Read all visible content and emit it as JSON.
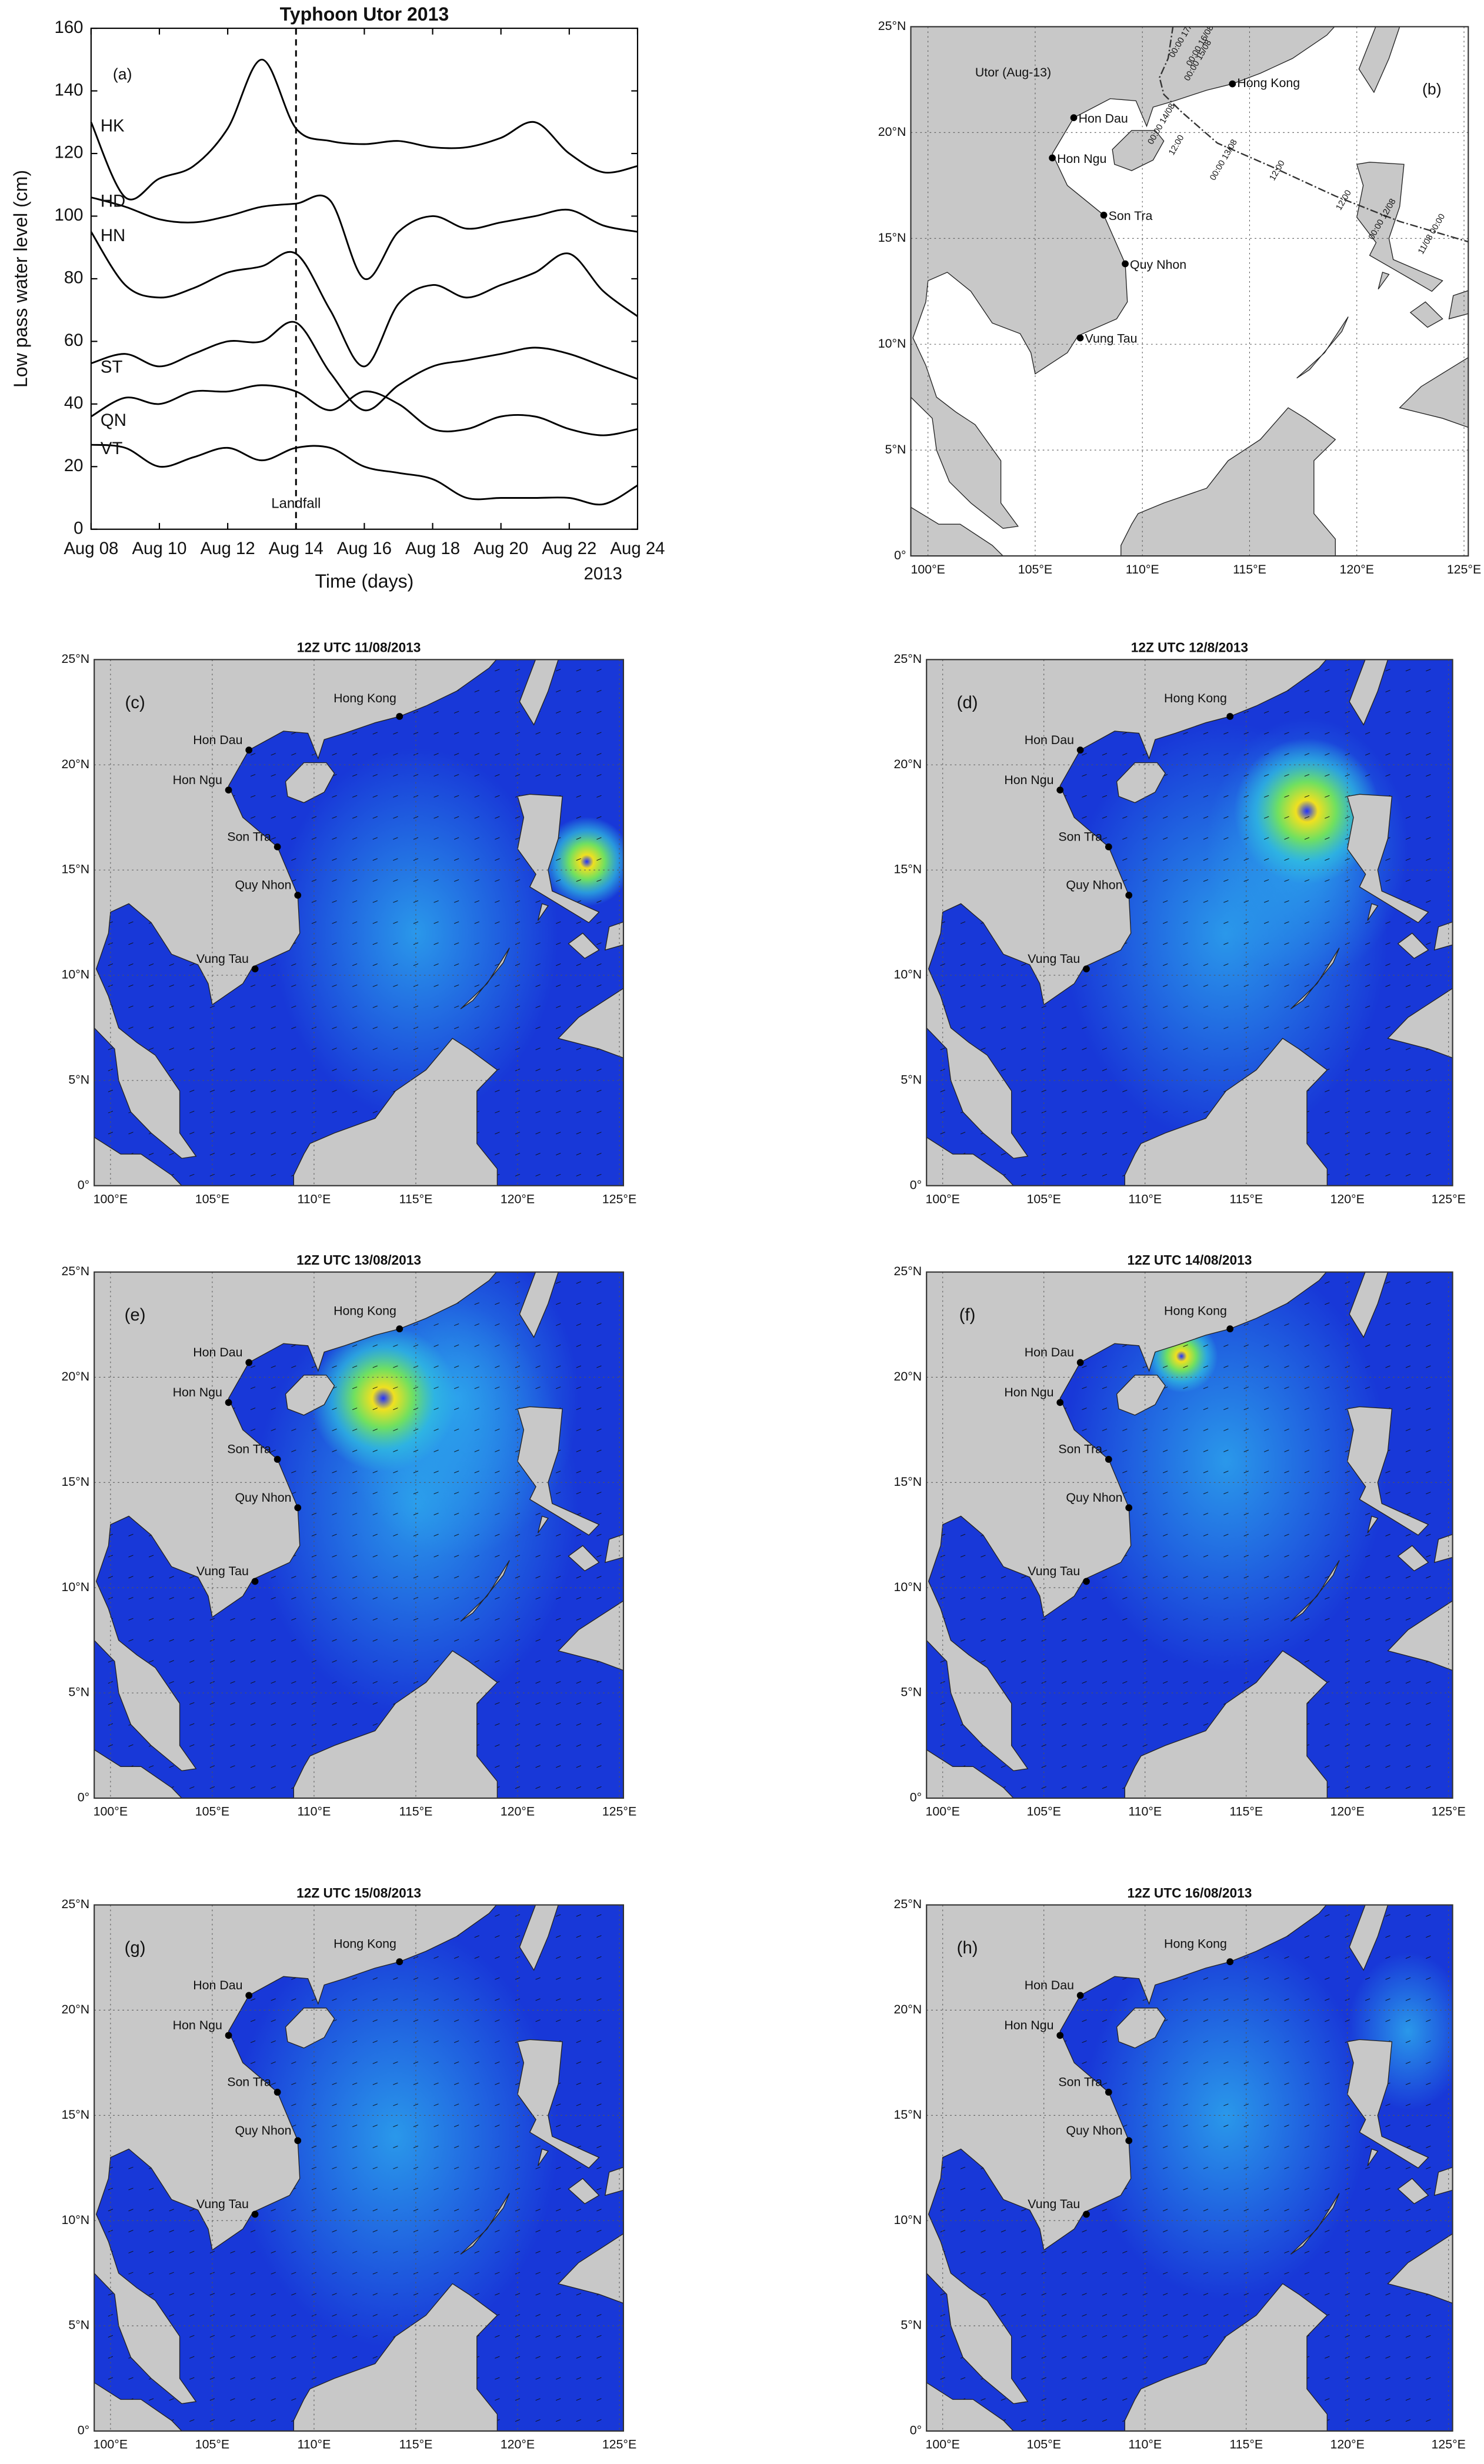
{
  "chart_data": {
    "type": "line",
    "title": "Typhoon Utor 2013",
    "panel_label": "(a)",
    "x_label": "Time (days)",
    "y_label": "Low pass water level (cm)",
    "x": [
      8,
      9,
      10,
      11,
      12,
      13,
      14,
      15,
      16,
      17,
      18,
      19,
      20,
      21,
      22,
      23,
      24
    ],
    "series": [
      {
        "name": "HK",
        "color": "#000000",
        "values": [
          130,
          106,
          112,
          116,
          128,
          150,
          128,
          124,
          123,
          124,
          122,
          122,
          125,
          130,
          120,
          114,
          116
        ]
      },
      {
        "name": "HD",
        "color": "#000000",
        "values": [
          106,
          103,
          99,
          98,
          100,
          103,
          104,
          105,
          80,
          95,
          100,
          96,
          98,
          100,
          102,
          97,
          95
        ]
      },
      {
        "name": "HN",
        "color": "#000000",
        "values": [
          95,
          78,
          74,
          77,
          82,
          84,
          88,
          70,
          52,
          72,
          78,
          74,
          78,
          82,
          88,
          76,
          68
        ]
      },
      {
        "name": "ST",
        "color": "#000000",
        "values": [
          53,
          56,
          52,
          56,
          60,
          60,
          66,
          50,
          38,
          46,
          52,
          54,
          56,
          58,
          56,
          52,
          48
        ]
      },
      {
        "name": "QN",
        "color": "#000000",
        "values": [
          36,
          42,
          40,
          44,
          44,
          46,
          44,
          38,
          44,
          40,
          32,
          32,
          36,
          36,
          32,
          30,
          32
        ]
      },
      {
        "name": "VT",
        "color": "#000000",
        "values": [
          27,
          26,
          20,
          23,
          26,
          22,
          26,
          26,
          20,
          18,
          16,
          10,
          10,
          10,
          10,
          8,
          14
        ]
      }
    ],
    "xlim": [
      8,
      24
    ],
    "xticks": [
      {
        "value": 8,
        "label": "Aug 08"
      },
      {
        "value": 10,
        "label": "Aug 10"
      },
      {
        "value": 12,
        "label": "Aug 12"
      },
      {
        "value": 14,
        "label": "Aug 14"
      },
      {
        "value": 16,
        "label": "Aug 16"
      },
      {
        "value": 18,
        "label": "Aug 18"
      },
      {
        "value": 20,
        "label": "Aug 20"
      },
      {
        "value": 22,
        "label": "Aug 22"
      },
      {
        "value": 24,
        "label": "Aug 24"
      }
    ],
    "x_year_label": "2013",
    "ylim": [
      0,
      160
    ],
    "yticks": [
      0,
      20,
      40,
      60,
      80,
      100,
      120,
      140,
      160
    ],
    "annotations": [
      {
        "text": "Landfall",
        "x": 14
      }
    ]
  },
  "map_axes": {
    "xlim": [
      99.2,
      125.2
    ],
    "ylim": [
      0,
      25
    ],
    "xticks": [
      {
        "value": 100,
        "label": "100°E"
      },
      {
        "value": 105,
        "label": "105°E"
      },
      {
        "value": 110,
        "label": "110°E"
      },
      {
        "value": 115,
        "label": "115°E"
      },
      {
        "value": 120,
        "label": "120°E"
      },
      {
        "value": 125,
        "label": "125°E"
      }
    ],
    "yticks": [
      {
        "value": 0,
        "label": "0°"
      },
      {
        "value": 5,
        "label": "5°N"
      },
      {
        "value": 10,
        "label": "10°N"
      },
      {
        "value": 15,
        "label": "15°N"
      },
      {
        "value": 20,
        "label": "20°N"
      },
      {
        "value": 25,
        "label": "25°N"
      }
    ]
  },
  "stations": [
    "Hong Kong",
    "Hon Dau",
    "Hon Ngu",
    "Son Tra",
    "Quy Nhon",
    "Vung Tau"
  ],
  "track_map": {
    "panel_label": "(b)",
    "storm_label": "Utor (Aug-13)",
    "track_labels": [
      "00:00 17/08",
      "00:00 16/08",
      "00:00 15/08",
      "00:00 14/08",
      "12:00",
      "00:00 13/08",
      "12:00",
      "12:00",
      "00:00 12/08",
      "11/08 00:00"
    ]
  },
  "current_maps": [
    {
      "panel_label": "(c)",
      "title": "12Z UTC 11/08/2013"
    },
    {
      "panel_label": "(d)",
      "title": "12Z UTC 12/8/2013"
    },
    {
      "panel_label": "(e)",
      "title": "12Z UTC 13/08/2013"
    },
    {
      "panel_label": "(f)",
      "title": "12Z UTC 14/08/2013"
    },
    {
      "panel_label": "(g)",
      "title": "12Z UTC 15/08/2013"
    },
    {
      "panel_label": "(h)",
      "title": "12Z UTC 16/08/2013"
    }
  ]
}
